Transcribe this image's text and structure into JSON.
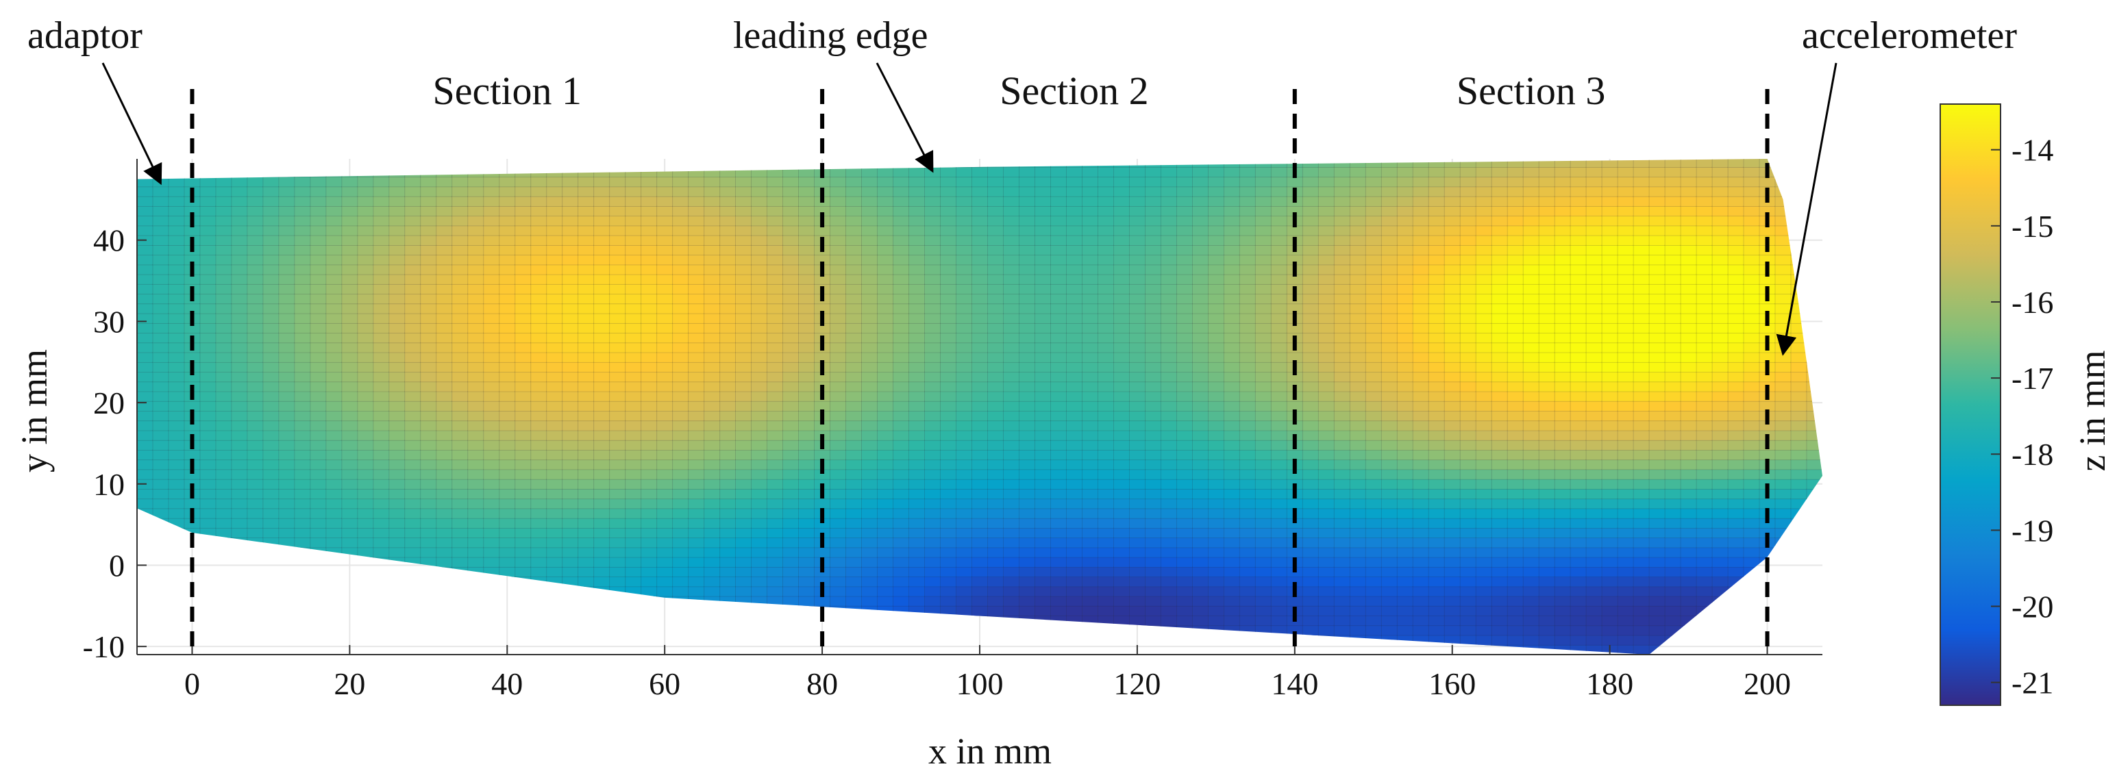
{
  "chart_data": {
    "type": "heatmap",
    "title": "",
    "xlabel": "x in mm",
    "ylabel": "y in mm",
    "colorbar_label": "z in mm",
    "xlim": [
      -7,
      207
    ],
    "ylim": [
      -11,
      50
    ],
    "x_ticks": [
      0,
      20,
      40,
      60,
      80,
      100,
      120,
      140,
      160,
      180,
      200
    ],
    "y_ticks": [
      -10,
      0,
      10,
      20,
      30,
      40
    ],
    "colorbar": {
      "range": [
        -21.3,
        -13.4
      ],
      "ticks": [
        -21,
        -20,
        -19,
        -18,
        -17,
        -16,
        -15,
        -14
      ],
      "colormap": "parula",
      "stops": [
        "#352a87",
        "#0f5cdd",
        "#1481d6",
        "#06a4ca",
        "#2eb7a4",
        "#87bf77",
        "#d1bb59",
        "#fec832",
        "#f9fb0e"
      ]
    },
    "section_boundaries_x": [
      0,
      80,
      140,
      200
    ],
    "sections": [
      {
        "label": "Section 1",
        "x_center": 40
      },
      {
        "label": "Section 2",
        "x_center": 112
      },
      {
        "label": "Section 3",
        "x_center": 170
      }
    ],
    "annotations": [
      {
        "label": "adaptor",
        "points_to": [
          -4,
          47
        ]
      },
      {
        "label": "leading edge",
        "points_to": [
          94,
          48.5
        ]
      },
      {
        "label": "accelerometer",
        "points_to": [
          202,
          26
        ]
      }
    ],
    "surface": {
      "outline": [
        [
          -7,
          47.5
        ],
        [
          100,
          49
        ],
        [
          200,
          50
        ],
        [
          202,
          45
        ],
        [
          204,
          32
        ],
        [
          207,
          11
        ],
        [
          200,
          1
        ],
        [
          185,
          -11
        ],
        [
          60,
          -4
        ],
        [
          0,
          4
        ],
        [
          -7,
          7
        ]
      ],
      "peaks": [
        {
          "x": 52,
          "y": 31,
          "z": -14.0
        },
        {
          "x": 166,
          "y": 30,
          "z": -14.9
        },
        {
          "x": 199,
          "y": 33,
          "z": -15.0
        }
      ],
      "troughs": [
        {
          "x": 110,
          "y": -6,
          "z": -21.0
        },
        {
          "x": 190,
          "y": -5,
          "z": -21.2
        }
      ],
      "base_z": -18.0
    }
  }
}
